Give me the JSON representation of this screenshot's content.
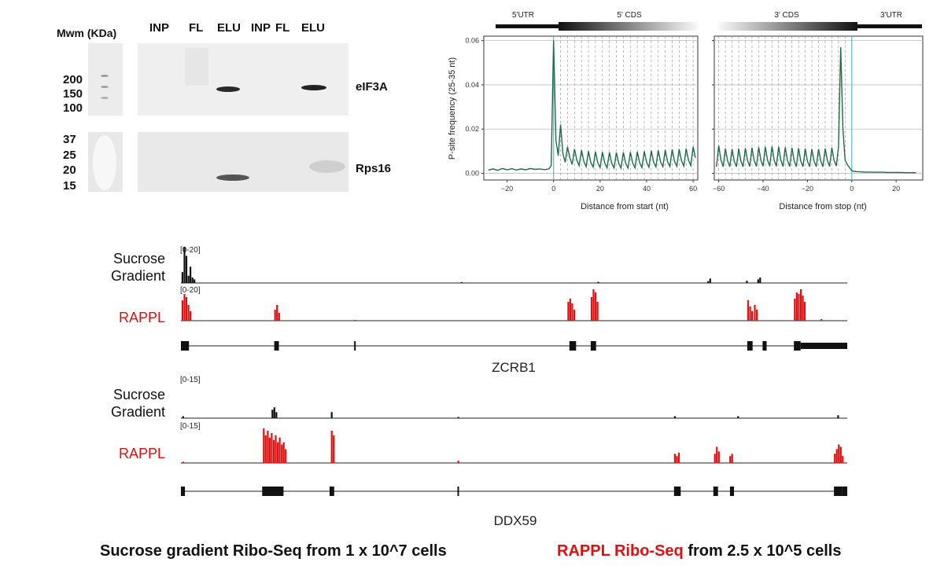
{
  "blot": {
    "mw_header": "Mwm (KDa)",
    "lane_labels": [
      "INP",
      "FL",
      "ELU",
      "INP",
      "FL",
      "ELU"
    ],
    "upper_markers": [
      "200",
      "150",
      "100"
    ],
    "lower_markers": [
      "37",
      "25",
      "20",
      "15"
    ],
    "protein_labels": [
      "eIF3A",
      "Rps16"
    ]
  },
  "chart_data": [
    {
      "type": "line",
      "panel": "left",
      "region_labels": [
        "5'UTR",
        "5' CDS"
      ],
      "title": "",
      "xlabel": "Distance from start (nt)",
      "ylabel": "P-site frequency (25-35 nt)",
      "xlim": [
        -30,
        62
      ],
      "ylim": [
        -0.003,
        0.062
      ],
      "xticks": [
        -20,
        0,
        20,
        40,
        60
      ],
      "yticks": [
        0.0,
        0.02,
        0.04,
        0.06
      ],
      "ytick_labels": [
        "0.00",
        "0.02",
        "0.04",
        "0.06"
      ],
      "series": [
        {
          "name": "P-site frequency",
          "color": "#1e6b4c",
          "x": [
            -28,
            -26,
            -24,
            -22,
            -20,
            -18,
            -16,
            -14,
            -12,
            -10,
            -8,
            -6,
            -4,
            -2,
            -1,
            0,
            1,
            2,
            3,
            4,
            5,
            6,
            7,
            8,
            9,
            10,
            11,
            12,
            13,
            14,
            15,
            16,
            17,
            18,
            19,
            20,
            21,
            22,
            23,
            24,
            25,
            26,
            27,
            28,
            29,
            30,
            31,
            32,
            33,
            34,
            35,
            36,
            37,
            38,
            39,
            40,
            41,
            42,
            43,
            44,
            45,
            46,
            47,
            48,
            49,
            50,
            51,
            52,
            53,
            54,
            55,
            56,
            57,
            58,
            59,
            60,
            61
          ],
          "y": [
            0.0015,
            0.002,
            0.0014,
            0.0022,
            0.0016,
            0.0021,
            0.0015,
            0.002,
            0.0016,
            0.0022,
            0.0018,
            0.002,
            0.0017,
            0.002,
            0.0035,
            0.06,
            0.015,
            0.008,
            0.022,
            0.009,
            0.005,
            0.012,
            0.007,
            0.004,
            0.011,
            0.006,
            0.0035,
            0.0105,
            0.0055,
            0.003,
            0.01,
            0.005,
            0.0028,
            0.0098,
            0.0048,
            0.0026,
            0.0096,
            0.0047,
            0.0025,
            0.0095,
            0.0046,
            0.0024,
            0.0094,
            0.0046,
            0.0024,
            0.0095,
            0.0046,
            0.0024,
            0.0096,
            0.0047,
            0.0025,
            0.0098,
            0.0048,
            0.0026,
            0.01,
            0.005,
            0.0028,
            0.0102,
            0.0051,
            0.0029,
            0.0104,
            0.0052,
            0.003,
            0.0106,
            0.0053,
            0.0031,
            0.0108,
            0.0055,
            0.0032,
            0.011,
            0.0057,
            0.0033,
            0.0112,
            0.006,
            0.0035,
            0.012,
            0.007
          ]
        }
      ]
    },
    {
      "type": "line",
      "panel": "right",
      "region_labels": [
        "3' CDS",
        "3'UTR"
      ],
      "title": "",
      "xlabel": "Distance from stop (nt)",
      "ylabel": "",
      "xlim": [
        -62,
        32
      ],
      "ylim": [
        -0.003,
        0.062
      ],
      "xticks": [
        -60,
        -40,
        -20,
        0,
        20
      ],
      "yticks": [
        0.0,
        0.02,
        0.04,
        0.06
      ],
      "series": [
        {
          "name": "P-site frequency",
          "color": "#1e6b4c",
          "x": [
            -61,
            -60,
            -59,
            -58,
            -57,
            -56,
            -55,
            -54,
            -53,
            -52,
            -51,
            -50,
            -49,
            -48,
            -47,
            -46,
            -45,
            -44,
            -43,
            -42,
            -41,
            -40,
            -39,
            -38,
            -37,
            -36,
            -35,
            -34,
            -33,
            -32,
            -31,
            -30,
            -29,
            -28,
            -27,
            -26,
            -25,
            -24,
            -23,
            -22,
            -21,
            -20,
            -19,
            -18,
            -17,
            -16,
            -15,
            -14,
            -13,
            -12,
            -11,
            -10,
            -9,
            -8,
            -7,
            -6,
            -5,
            -4,
            -3,
            -2,
            -1,
            0,
            1,
            2,
            4,
            6,
            8,
            10,
            12,
            14,
            16,
            18,
            20,
            22,
            24,
            26,
            28,
            29
          ],
          "y": [
            0.003,
            0.0125,
            0.006,
            0.003,
            0.0112,
            0.0057,
            0.003,
            0.011,
            0.0055,
            0.003,
            0.0112,
            0.0056,
            0.003,
            0.0114,
            0.0057,
            0.0031,
            0.0116,
            0.0058,
            0.0031,
            0.0118,
            0.0059,
            0.0032,
            0.012,
            0.006,
            0.0032,
            0.0122,
            0.006,
            0.0032,
            0.012,
            0.0059,
            0.0031,
            0.0118,
            0.0058,
            0.0031,
            0.0116,
            0.0057,
            0.003,
            0.0114,
            0.0056,
            0.003,
            0.0112,
            0.0055,
            0.003,
            0.011,
            0.0055,
            0.003,
            0.011,
            0.0056,
            0.003,
            0.0112,
            0.0058,
            0.0031,
            0.0116,
            0.006,
            0.0033,
            0.012,
            0.057,
            0.02,
            0.006,
            0.004,
            0.0025,
            0.0012,
            0.0009,
            0.0008,
            0.0007,
            0.0006,
            0.0006,
            0.0005,
            0.0005,
            0.0005,
            0.0004,
            0.0004,
            0.0004,
            0.0004,
            0.0003,
            0.0003,
            0.0003,
            0.0003
          ]
        }
      ]
    },
    {
      "type": "bar",
      "panel": "ZCRB1 coverage",
      "gene": "ZCRB1",
      "track_names": [
        "Sucrose Gradient",
        "RAPPL"
      ],
      "ranges": [
        "[0-20]",
        "[0-20]"
      ],
      "ylim": [
        0,
        20
      ],
      "series": [
        {
          "name": "Sucrose Gradient",
          "color": "#111111",
          "x": [
            0.1,
            0.4,
            0.7,
            1.0,
            1.3,
            1.6,
            1.9,
            42.0,
            62.5,
            79.0,
            79.3,
            84.8,
            86.5,
            86.8
          ],
          "values": [
            6,
            20,
            15,
            4,
            9,
            3,
            2,
            0.5,
            0.6,
            1,
            2.5,
            1.2,
            2,
            3
          ]
        },
        {
          "name": "RAPPL",
          "color": "#dd1111",
          "x": [
            0.1,
            0.4,
            0.7,
            1.0,
            1.3,
            14.0,
            14.3,
            14.6,
            26.0,
            58.0,
            58.3,
            58.6,
            58.9,
            61.5,
            61.8,
            62.1,
            62.4,
            85.0,
            85.3,
            85.6,
            86.0,
            86.3,
            92.0,
            92.3,
            92.6,
            92.9,
            93.2,
            93.5,
            96.0
          ],
          "values": [
            13,
            17,
            15,
            10,
            6,
            7,
            10,
            5,
            0.5,
            12,
            14,
            11,
            7,
            15,
            20,
            18,
            12,
            13,
            9,
            6,
            10,
            7,
            14,
            18,
            17,
            20,
            16,
            12,
            1
          ]
        }
      ],
      "exons": [
        [
          0,
          1.2
        ],
        [
          14,
          14.7
        ],
        [
          26,
          26.2
        ],
        [
          58.3,
          59.3
        ],
        [
          61.5,
          62.3
        ],
        [
          85,
          85.8
        ],
        [
          87.3,
          87.9
        ],
        [
          92,
          93
        ],
        [
          93,
          100
        ]
      ]
    },
    {
      "type": "bar",
      "panel": "DDX59 coverage",
      "gene": "DDX59",
      "track_names": [
        "Sucrose Gradient",
        "RAPPL"
      ],
      "ranges": [
        "[0-15]",
        "[0-15]"
      ],
      "ylim": [
        0,
        15
      ],
      "series": [
        {
          "name": "Sucrose Gradient",
          "color": "#111111",
          "x": [
            0.2,
            13.6,
            13.9,
            14.2,
            22.5,
            41.5,
            74.0,
            83.5,
            98.5
          ],
          "values": [
            0.8,
            3.5,
            4.5,
            2.5,
            2.5,
            0.5,
            0.8,
            0.8,
            1.2
          ]
        },
        {
          "name": "RAPPL",
          "color": "#dd1111",
          "x": [
            0.2,
            12.3,
            12.6,
            12.9,
            13.2,
            13.5,
            13.8,
            14.1,
            14.4,
            14.7,
            15.0,
            15.3,
            15.6,
            22.5,
            22.8,
            41.5,
            74.0,
            74.3,
            74.6,
            80.0,
            80.3,
            80.6,
            82.3,
            82.6,
            98.0,
            98.3,
            98.6,
            98.9,
            99.2
          ],
          "values": [
            0.5,
            15,
            12,
            14,
            11,
            13,
            10,
            12,
            9,
            11,
            8,
            9,
            6,
            14,
            12,
            1,
            4,
            3,
            4.5,
            4,
            7,
            5,
            3,
            4,
            4,
            6,
            8,
            7,
            3
          ]
        }
      ],
      "exons": [
        [
          0,
          0.6
        ],
        [
          12.2,
          15.4
        ],
        [
          22.3,
          23.0
        ],
        [
          41.5,
          41.7
        ],
        [
          74.0,
          75.0
        ],
        [
          79.9,
          80.6
        ],
        [
          82.4,
          83.0
        ],
        [
          98.0,
          99.2
        ],
        [
          99.2,
          100
        ]
      ]
    }
  ],
  "captions": {
    "left": "Sucrose gradient Ribo-Seq from 1 x 10^7 cells",
    "right_red": "RAPPL Ribo-Seq",
    "right_rest": " from 2.5 x 10^5 cells"
  }
}
